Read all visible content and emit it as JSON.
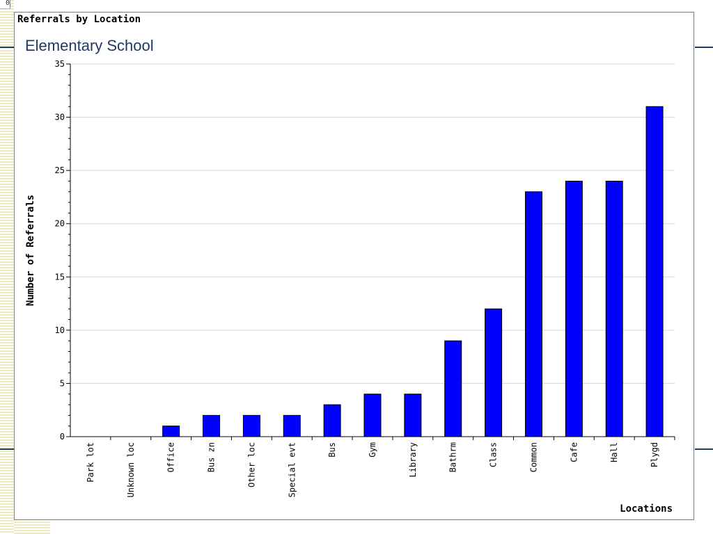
{
  "corner_text": "0",
  "chart_data": {
    "type": "bar",
    "title": "Referrals by Location",
    "subtitle": "Elementary School",
    "xlabel": "Locations",
    "ylabel": "Number of Referrals",
    "ylim": [
      0,
      35
    ],
    "yticks": [
      0,
      5,
      10,
      15,
      20,
      25,
      30,
      35
    ],
    "grid": true,
    "bar_color": "#0000ff",
    "categories": [
      "Park lot",
      "Unknown loc",
      "Office",
      "Bus zn",
      "Other loc",
      "Special evt",
      "Bus",
      "Gym",
      "Library",
      "Bathrm",
      "Class",
      "Common",
      "Cafe",
      "Hall",
      "Plygd"
    ],
    "values": [
      0,
      0,
      1,
      2,
      2,
      2,
      3,
      4,
      4,
      9,
      12,
      23,
      24,
      24,
      31
    ]
  }
}
